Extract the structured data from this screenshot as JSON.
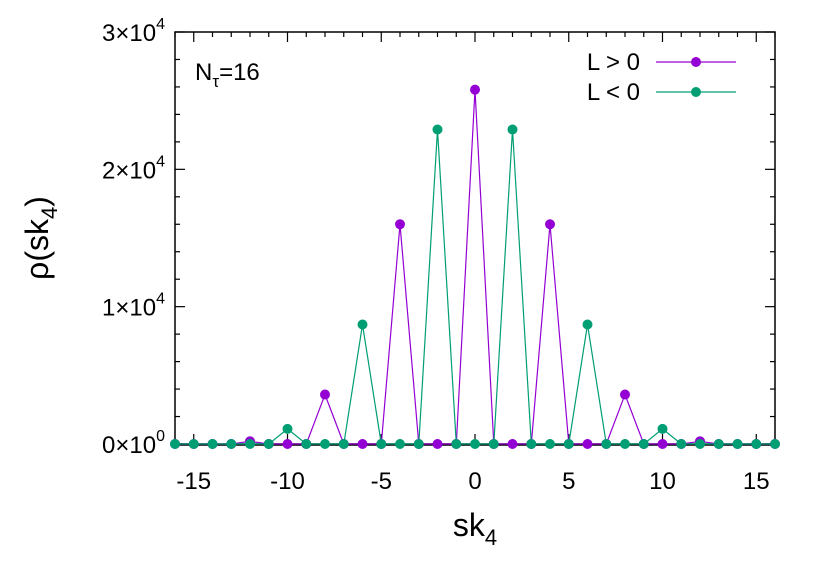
{
  "chart_data": {
    "type": "line",
    "xlabel_main": "sk",
    "xlabel_sub": "4",
    "ylabel_pre": "ρ(sk",
    "ylabel_sub": "4",
    "ylabel_post": ")",
    "annotation_main": "N",
    "annotation_sub": "τ",
    "annotation_post": "=16",
    "xlim": [
      -16,
      16
    ],
    "ylim": [
      0,
      30000
    ],
    "xticks": [
      {
        "value": -15,
        "label": "-15"
      },
      {
        "value": -10,
        "label": "-10"
      },
      {
        "value": -5,
        "label": "-5"
      },
      {
        "value": 0,
        "label": "0"
      },
      {
        "value": 5,
        "label": "5"
      },
      {
        "value": 10,
        "label": "10"
      },
      {
        "value": 15,
        "label": "15"
      }
    ],
    "yticks": [
      {
        "value": 0,
        "mantissa": "0×10",
        "exp": "0"
      },
      {
        "value": 10000,
        "mantissa": "1×10",
        "exp": "4"
      },
      {
        "value": 20000,
        "mantissa": "2×10",
        "exp": "4"
      },
      {
        "value": 30000,
        "mantissa": "3×10",
        "exp": "4"
      }
    ],
    "legend_position": "top-right",
    "grid": false,
    "x": [
      -16,
      -15,
      -14,
      -13,
      -12,
      -11,
      -10,
      -9,
      -8,
      -7,
      -6,
      -5,
      -4,
      -3,
      -2,
      -1,
      0,
      1,
      2,
      3,
      4,
      5,
      6,
      7,
      8,
      9,
      10,
      11,
      12,
      13,
      14,
      15,
      16
    ],
    "series": [
      {
        "name": "L > 0",
        "color": "#9400d3",
        "values": [
          0,
          0,
          0,
          0,
          200,
          0,
          0,
          0,
          3600,
          0,
          0,
          0,
          16000,
          0,
          0,
          0,
          25800,
          0,
          0,
          0,
          16000,
          0,
          0,
          0,
          3600,
          0,
          0,
          0,
          200,
          0,
          0,
          0,
          0
        ]
      },
      {
        "name": "L < 0",
        "color": "#009e73",
        "values": [
          0,
          0,
          0,
          0,
          0,
          0,
          1100,
          0,
          0,
          0,
          8700,
          0,
          0,
          0,
          22900,
          0,
          0,
          0,
          22900,
          0,
          0,
          0,
          8700,
          0,
          0,
          0,
          1100,
          0,
          0,
          0,
          0,
          0,
          0
        ]
      }
    ]
  }
}
